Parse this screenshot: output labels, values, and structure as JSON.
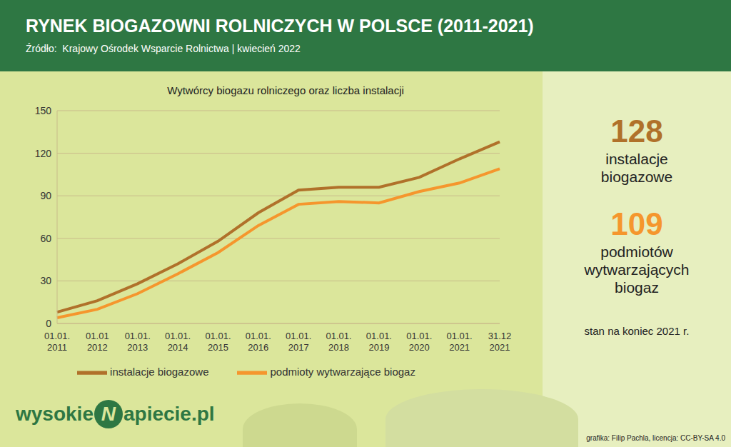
{
  "header": {
    "title": "RYNEK BIOGAZOWNI ROLNICZYCH W POLSCE (2011-2021)",
    "subtitle": "Źródło:  Krajowy Ośrodek Wsparcie Rolnictwa | kwiecień 2022"
  },
  "chart_data": {
    "type": "line",
    "title": "Wytwórcy biogazu rolniczego oraz liczba instalacji",
    "categories": [
      "01.01.\n2011",
      "01.01\n2012",
      "01.01.\n2013",
      "01.01.\n2014",
      "01.01.\n2015",
      "01.01.\n2016",
      "01.01.\n2017",
      "01.01.\n2018",
      "01.01.\n2019",
      "01.01.\n2020",
      "01.01.\n2021",
      "31.12\n2021"
    ],
    "series": [
      {
        "name": "instalacje biogazowe",
        "color": "#b0712a",
        "values": [
          8,
          16,
          28,
          42,
          58,
          78,
          94,
          96,
          96,
          103,
          116,
          128
        ]
      },
      {
        "name": "podmioty wytwarzające biogaz",
        "color": "#f5962d",
        "values": [
          4,
          10,
          21,
          35,
          50,
          69,
          84,
          86,
          85,
          93,
          99,
          109
        ]
      }
    ],
    "ylim": [
      0,
      150
    ],
    "yticks": [
      0,
      30,
      60,
      90,
      120,
      150
    ],
    "grid": true,
    "legend": "bottom"
  },
  "panel": {
    "stats": [
      {
        "value": "128",
        "label": "instalacje biogazowe",
        "color": "#b0712a"
      },
      {
        "value": "109",
        "label": "podmiotów wytwarzających biogaz",
        "color": "#f5962d"
      }
    ],
    "note": "stan na koniec 2021 r."
  },
  "footer": {
    "logo": [
      "wysokie",
      "N",
      "apiecie.pl"
    ],
    "credit": "grafika: Filip Pachla, licencja: CC-BY-SA 4.0"
  }
}
